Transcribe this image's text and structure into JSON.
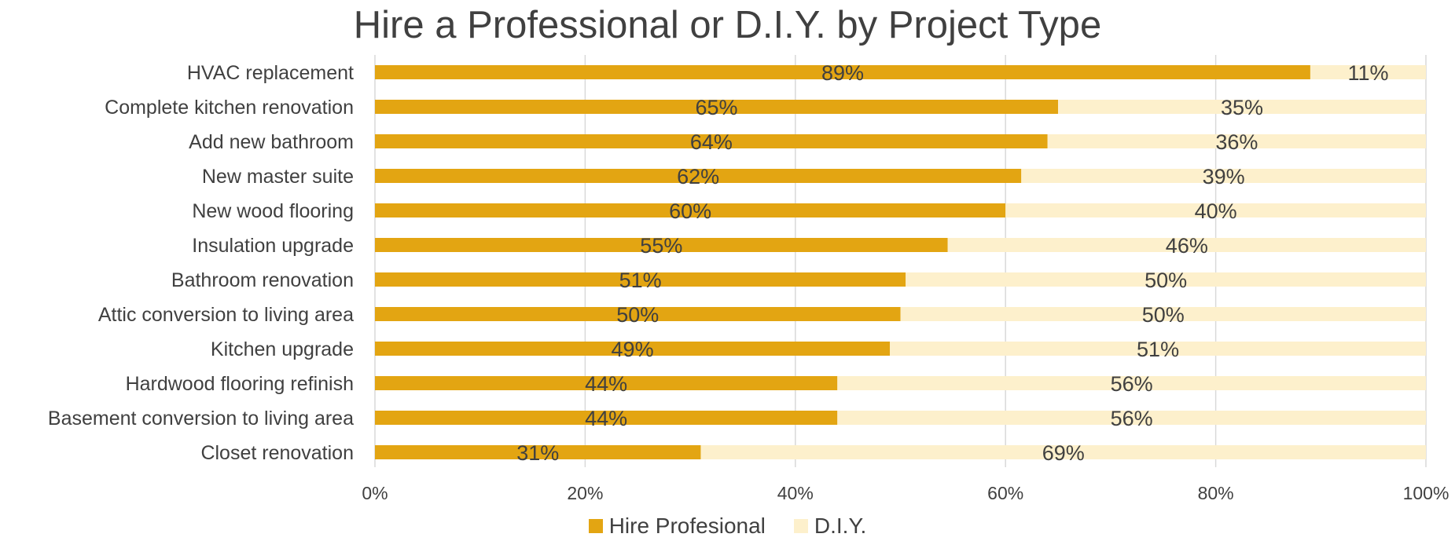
{
  "chart_data": {
    "type": "bar",
    "orientation": "horizontal",
    "stacked": true,
    "title": "Hire a Professional or D.I.Y.  by Project Type",
    "categories": [
      "HVAC replacement",
      "Complete kitchen renovation",
      "Add new bathroom",
      "New master suite",
      "New wood flooring",
      "Insulation upgrade",
      "Bathroom renovation",
      "Attic conversion to living area",
      "Kitchen upgrade",
      "Hardwood flooring refinish",
      "Basement conversion to living area",
      "Closet renovation"
    ],
    "series": [
      {
        "name": "Hire Profesional",
        "color": "#E3A512",
        "values": [
          89,
          65,
          64,
          61.5,
          60,
          54.5,
          50.5,
          50,
          49,
          44,
          44,
          31
        ],
        "labels": [
          "89%",
          "65%",
          "64%",
          "62%",
          "60%",
          "55%",
          "51%",
          "50%",
          "49%",
          "44%",
          "44%",
          "31%"
        ]
      },
      {
        "name": "D.I.Y.",
        "color": "#FDF0CC",
        "values": [
          11,
          35,
          36,
          38.5,
          40,
          45.5,
          49.5,
          50,
          51,
          56,
          56,
          69
        ],
        "labels": [
          "11%",
          "35%",
          "36%",
          "39%",
          "40%",
          "46%",
          "50%",
          "50%",
          "51%",
          "56%",
          "56%",
          "69%"
        ]
      }
    ],
    "xlim": [
      0,
      100
    ],
    "x_ticks": [
      "0%",
      "20%",
      "40%",
      "60%",
      "80%",
      "100%"
    ],
    "grid": true,
    "legend": "bottom-center"
  }
}
